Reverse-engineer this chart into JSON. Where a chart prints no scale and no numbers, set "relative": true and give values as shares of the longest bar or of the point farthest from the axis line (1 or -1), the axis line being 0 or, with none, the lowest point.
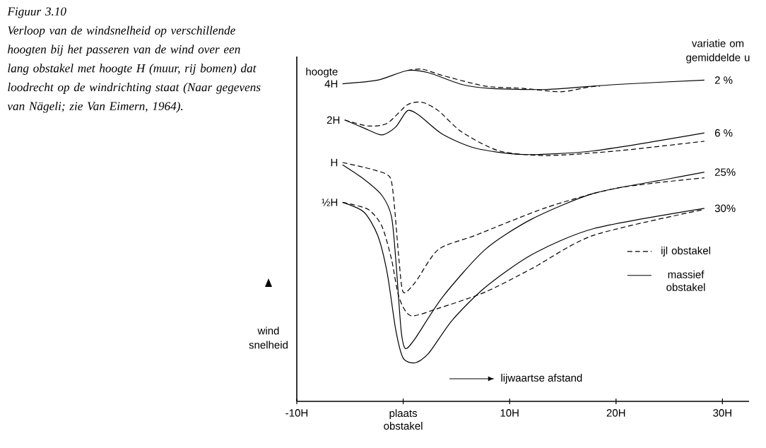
{
  "chart_data": {
    "type": "line",
    "relative": true,
    "title": "Figuur 3.10",
    "subtitle": "Verloop van de windsnelheid op verschillende hoogten bij het passeren van de wind over een lang obstakel met hoogte H (muur, rij bomen) dat loodrecht op de windrichting staat (Naar gegevens van Nägeli; zie Van Eimern, 1964).",
    "xlabel": "lijwaartse afstand",
    "ylabel": "wind snelheid",
    "xlim": [
      -10,
      32.5
    ],
    "xticks": [
      {
        "value": -10,
        "label": "-10H"
      },
      {
        "value": 0,
        "label": "plaats obstakel"
      },
      {
        "value": 10,
        "label": "10H"
      },
      {
        "value": 20,
        "label": "20H"
      },
      {
        "value": 30,
        "label": "30H"
      }
    ],
    "legend": "right",
    "series": [
      {
        "name": "ijl obstakel",
        "color": "#000000",
        "line_style": "dashed",
        "x": [
          0.4,
          1.8,
          3.7,
          7.7,
          11.3,
          14.8,
          17.4,
          18.5
        ],
        "values": [
          0.996,
          1.0,
          0.981,
          0.949,
          0.942,
          0.932,
          0.946,
          0.949
        ]
      },
      {
        "name": "massief obstakel",
        "color": "#000000",
        "line_style": "solid",
        "x": [
          -5.7,
          -2.4,
          0.4,
          2.4,
          5.5,
          8.2,
          13.5,
          20.1,
          28.3
        ],
        "values": [
          0.956,
          0.967,
          0.996,
          0.989,
          0.954,
          0.942,
          0.939,
          0.954,
          0.967
        ]
      },
      {
        "color": "#000000",
        "line_style": "dashed",
        "x": [
          -5.5,
          -3.3,
          -1.5,
          0.4,
          1.8,
          3.3,
          5.5,
          9.0,
          13.5,
          20.1,
          28.3
        ],
        "values": [
          0.847,
          0.829,
          0.837,
          0.893,
          0.9,
          0.875,
          0.811,
          0.754,
          0.74,
          0.754,
          0.783
        ]
      },
      {
        "color": "#000000",
        "line_style": "solid",
        "x": [
          -5.5,
          -3.7,
          -2.0,
          -0.7,
          0.4,
          1.5,
          3.7,
          6.8,
          11.3,
          17.9,
          28.3
        ],
        "values": [
          0.847,
          0.823,
          0.802,
          0.826,
          0.875,
          0.861,
          0.804,
          0.762,
          0.743,
          0.754,
          0.808
        ]
      },
      {
        "color": "#000000",
        "line_style": "dashed",
        "x": [
          -5.7,
          -2.9,
          -1.3,
          -0.9,
          -0.4,
          0.0,
          1.1,
          3.3,
          6.8,
          13.5,
          20.1,
          28.3
        ],
        "values": [
          0.719,
          0.698,
          0.677,
          0.613,
          0.428,
          0.329,
          0.357,
          0.457,
          0.5,
          0.584,
          0.642,
          0.673
        ]
      },
      {
        "color": "#000000",
        "line_style": "solid",
        "x": [
          -5.7,
          -3.7,
          -2.0,
          -1.1,
          -0.7,
          -0.2,
          0.2,
          1.1,
          3.7,
          7.7,
          12.1,
          17.9,
          24.8,
          28.3
        ],
        "values": [
          0.712,
          0.669,
          0.62,
          0.556,
          0.428,
          0.215,
          0.159,
          0.188,
          0.314,
          0.457,
          0.549,
          0.626,
          0.669,
          0.69
        ]
      },
      {
        "color": "#000000",
        "line_style": "dashed",
        "x": [
          -5.7,
          -3.3,
          -2.0,
          -1.1,
          -0.4,
          0.7,
          3.3,
          7.7,
          12.1,
          17.9,
          28.3
        ],
        "values": [
          0.599,
          0.578,
          0.527,
          0.428,
          0.314,
          0.258,
          0.28,
          0.329,
          0.4,
          0.5,
          0.578
        ]
      },
      {
        "color": "#000000",
        "line_style": "solid",
        "x": [
          -5.7,
          -3.7,
          -2.4,
          -1.5,
          -0.7,
          0.0,
          1.1,
          2.4,
          4.6,
          7.7,
          12.1,
          17.9,
          28.3
        ],
        "values": [
          0.599,
          0.57,
          0.5,
          0.386,
          0.215,
          0.13,
          0.116,
          0.145,
          0.244,
          0.343,
          0.442,
          0.52,
          0.581
        ]
      }
    ],
    "annotations": [
      "hoogte",
      "variatie om gemiddelde u",
      {
        "text": "4H",
        "x": -5.7,
        "y": 0.956
      },
      {
        "text": "2H",
        "x": -5.5,
        "y": 0.847
      },
      {
        "text": "H",
        "x": -5.7,
        "y": 0.719
      },
      {
        "text": "½H",
        "x": -5.7,
        "y": 0.599
      },
      {
        "text": "2 %",
        "x": 28.3,
        "y": 0.967
      },
      {
        "text": "6 %",
        "x": 28.3,
        "y": 0.808
      },
      {
        "text": "25%",
        "x": 28.3,
        "y": 0.69
      },
      {
        "text": "30%",
        "x": 28.3,
        "y": 0.581
      }
    ]
  }
}
